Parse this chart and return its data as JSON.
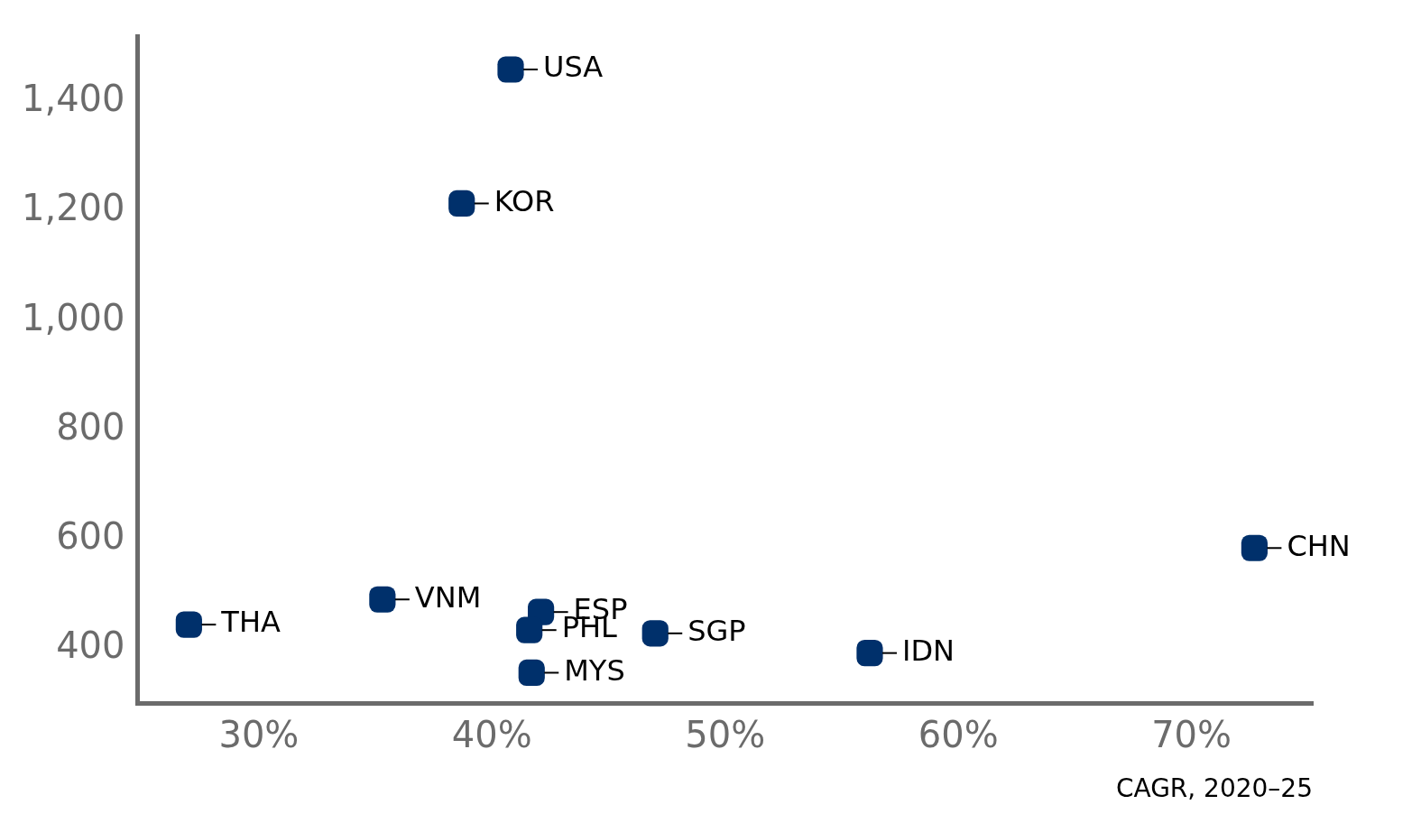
{
  "chart_data": {
    "type": "scatter",
    "xlabel": "CAGR, 2020–25",
    "x": [
      40.8,
      38.7,
      27.0,
      35.3,
      42.1,
      41.6,
      41.7,
      47.0,
      56.2,
      72.7
    ],
    "series": [
      {
        "color": "#00306b",
        "values": [
          1459,
          1214,
          444,
          490,
          467,
          434,
          356,
          428,
          392,
          584
        ]
      }
    ],
    "annotations": [
      {
        "text": "USA",
        "x": 40.8,
        "y": 1459
      },
      {
        "text": "KOR",
        "x": 38.7,
        "y": 1214
      },
      {
        "text": "THA",
        "x": 27.0,
        "y": 444
      },
      {
        "text": "VNM",
        "x": 35.3,
        "y": 490
      },
      {
        "text": "ESP",
        "x": 42.1,
        "y": 467
      },
      {
        "text": "PHL",
        "x": 41.6,
        "y": 434
      },
      {
        "text": "MYS",
        "x": 41.7,
        "y": 356
      },
      {
        "text": "SGP",
        "x": 47.0,
        "y": 428
      },
      {
        "text": "IDN",
        "x": 56.2,
        "y": 392
      },
      {
        "text": "CHN",
        "x": 72.7,
        "y": 584
      }
    ],
    "xlim": [
      24.8,
      75.2
    ],
    "ylim": [
      300,
      1520
    ],
    "xticks": [
      {
        "value": 30,
        "label": "30%"
      },
      {
        "value": 40,
        "label": "40%"
      },
      {
        "value": 50,
        "label": "50%"
      },
      {
        "value": 60,
        "label": "60%"
      },
      {
        "value": 70,
        "label": "70%"
      }
    ],
    "yticks": [
      {
        "value": 400,
        "label": "400"
      },
      {
        "value": 600,
        "label": "600"
      },
      {
        "value": 800,
        "label": "800"
      },
      {
        "value": 1000,
        "label": "1,000"
      },
      {
        "value": 1200,
        "label": "1,200"
      },
      {
        "value": 1400,
        "label": "1,400"
      }
    ],
    "marker": "square",
    "grid": false,
    "legend": false
  }
}
